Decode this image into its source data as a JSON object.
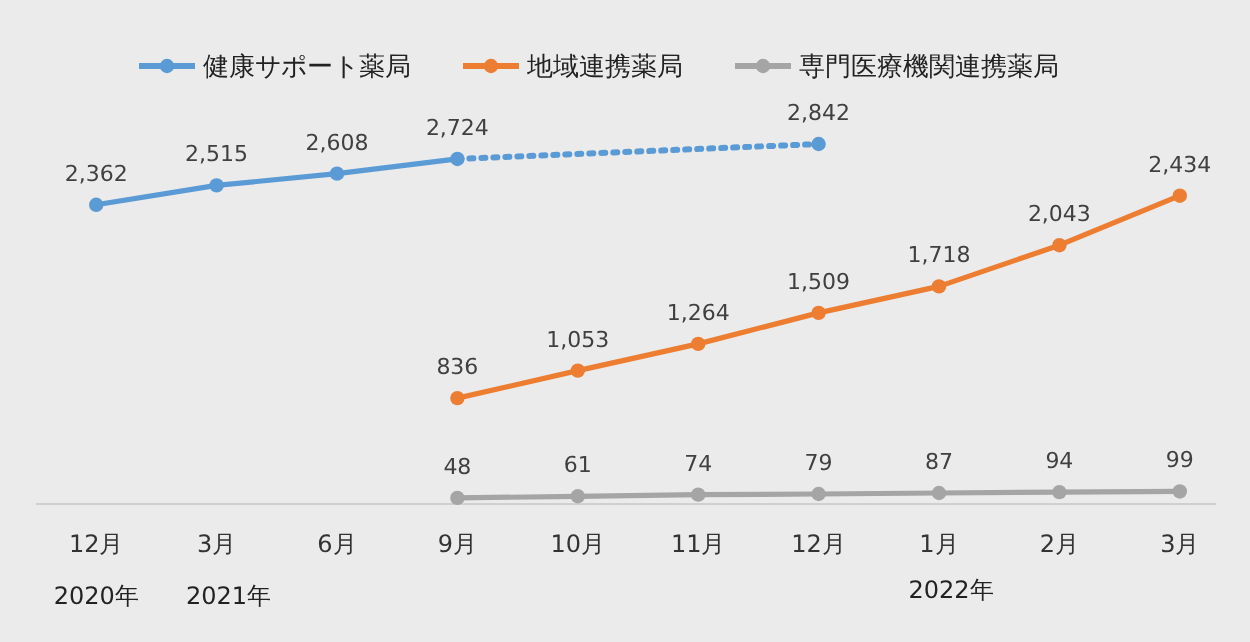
{
  "chart_data": {
    "type": "line",
    "categories": [
      "12月",
      "3月",
      "6月",
      "9月",
      "10月",
      "11月",
      "12月",
      "1月",
      "2月",
      "3月"
    ],
    "series": [
      {
        "name": "健康サポート薬局",
        "color": "#5b9bd5",
        "values": [
          2362,
          2515,
          2608,
          2724,
          null,
          null,
          null,
          null,
          null,
          null
        ],
        "value_labels": [
          "2,362",
          "2,515",
          "2,608",
          "2,724",
          null,
          null,
          null,
          null,
          null,
          null
        ],
        "line_style": "solid"
      },
      {
        "color": "#5b9bd5",
        "values": [
          null,
          null,
          null,
          2724,
          null,
          null,
          2842,
          null,
          null,
          null
        ],
        "value_labels": [
          null,
          null,
          null,
          null,
          null,
          null,
          "2,842",
          null,
          null,
          null
        ],
        "line_style": "dotted"
      },
      {
        "name": "地域連携薬局",
        "color": "#ed7d31",
        "values": [
          null,
          null,
          null,
          836,
          1053,
          1264,
          1509,
          1718,
          2043,
          2434
        ],
        "value_labels": [
          null,
          null,
          null,
          "836",
          "1,053",
          "1,264",
          "1,509",
          "1,718",
          "2,043",
          "2,434"
        ],
        "line_style": "solid"
      },
      {
        "name": "専門医療機関連携薬局",
        "color": "#a5a5a5",
        "values": [
          null,
          null,
          null,
          48,
          61,
          74,
          79,
          87,
          94,
          99
        ],
        "value_labels": [
          null,
          null,
          null,
          "48",
          "61",
          "74",
          "79",
          "87",
          "94",
          "99"
        ],
        "line_style": "solid"
      }
    ],
    "annotations": [
      "2020年",
      "2021年",
      "2022年"
    ],
    "marker": "circle",
    "legend": "top"
  }
}
